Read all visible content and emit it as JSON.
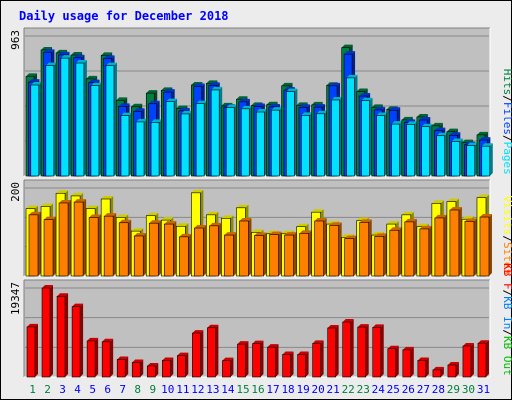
{
  "colors": {
    "background": "#ececec",
    "panel": "#c0c0c0",
    "frame": "#000000",
    "title": "#0000ff",
    "hits": "#008040",
    "files": "#0040ff",
    "pages": "#00e0ff",
    "visits": "#ffff00",
    "sites": "#ff8000",
    "kbin": "#0080ff",
    "kbout": "#00c000",
    "kbf": "#ff0000",
    "weekend_day": "#008040",
    "weekday_day": "#0000ff"
  },
  "chart_data": {
    "type": "bar",
    "title": "Daily usage for December 2018",
    "categories": [
      "1",
      "2",
      "3",
      "4",
      "5",
      "6",
      "7",
      "8",
      "9",
      "10",
      "11",
      "12",
      "13",
      "14",
      "15",
      "16",
      "17",
      "18",
      "19",
      "20",
      "21",
      "22",
      "23",
      "24",
      "25",
      "26",
      "27",
      "28",
      "29",
      "30",
      "31"
    ],
    "weekend_days": [
      "1",
      "2",
      "8",
      "9",
      "15",
      "16",
      "22",
      "23",
      "29",
      "30"
    ],
    "panels": [
      {
        "name": "hits-panel",
        "ymax_label": "963",
        "ymax": 963,
        "legend": [
          {
            "text": "Hits",
            "color": "#008040"
          },
          {
            "text": "/",
            "color": "#000000"
          },
          {
            "text": "Files",
            "color": "#0040ff"
          },
          {
            "text": "/",
            "color": "#000000"
          },
          {
            "text": "Pages",
            "color": "#00e0ff"
          }
        ],
        "series": [
          {
            "key": "hits",
            "values": [
              685,
              867,
              847,
              832,
              668,
              830,
              520,
              476,
              570,
              589,
              464,
              626,
              637,
              482,
              528,
              486,
              490,
              620,
              486,
              489,
              624,
              883,
              581,
              472,
              458,
              386,
              406,
              345,
              305,
              230,
              283
            ]
          },
          {
            "key": "files",
            "values": [
              646,
              850,
              833,
              813,
              642,
              809,
              479,
              445,
              497,
              577,
              448,
              616,
              623,
              474,
              510,
              478,
              475,
              591,
              472,
              474,
              620,
              838,
              550,
              455,
              452,
              369,
              385,
              312,
              280,
              215,
              247
            ]
          },
          {
            "key": "pages",
            "values": [
              626,
              759,
              811,
              777,
              622,
              759,
              415,
              372,
              369,
              512,
              427,
              498,
              592,
              471,
              462,
              440,
              453,
              580,
              417,
              428,
              523,
              675,
              518,
              416,
              357,
              355,
              339,
              277,
              237,
              209,
              205
            ]
          }
        ]
      },
      {
        "name": "visits-panel",
        "ymax_label": "200",
        "ymax": 200,
        "legend": [
          {
            "text": "Visits",
            "color": "#ffff00"
          },
          {
            "text": "/",
            "color": "#000000"
          },
          {
            "text": "Sites",
            "color": "#ff8000"
          }
        ],
        "series": [
          {
            "key": "visits",
            "values": [
              153,
              158,
              188,
              182,
              153,
              175,
              133,
              102,
              137,
              127,
              113,
              189,
              139,
              131,
              155,
              99,
              96,
              96,
              112,
              145,
              118,
              88,
              126,
              93,
              118,
              139,
              112,
              165,
              169,
              129,
              178
            ]
          },
          {
            "key": "sites",
            "values": [
              139,
              128,
              166,
              168,
              133,
              136,
              121,
              91,
              120,
              118,
              89,
              109,
              114,
              93,
              125,
              92,
              94,
              93,
              97,
              125,
              115,
              85,
              122,
              90,
              104,
              123,
              107,
              132,
              150,
              124,
              134
            ]
          }
        ]
      },
      {
        "name": "kb-panel",
        "ymax_label": "19347",
        "ymax": 19347,
        "legend": [
          {
            "text": "KB F",
            "color": "#ff0000"
          },
          {
            "text": "/",
            "color": "#000000"
          },
          {
            "text": "KB In",
            "color": "#0080ff"
          },
          {
            "text": "/",
            "color": "#000000"
          },
          {
            "text": "KB Out",
            "color": "#00c000"
          }
        ],
        "series": [
          {
            "key": "kbf",
            "values": [
              10900,
              19347,
              17550,
              15300,
              7850,
              7650,
              3800,
              3150,
              2400,
              3600,
              4650,
              9550,
              10700,
              3550,
              7150,
              7250,
              6500,
              4900,
              4900,
              7300,
              10650,
              11950,
              10850,
              10800,
              6150,
              5900,
              3600,
              1550,
              2600,
              6750,
              7350
            ]
          }
        ]
      }
    ]
  }
}
